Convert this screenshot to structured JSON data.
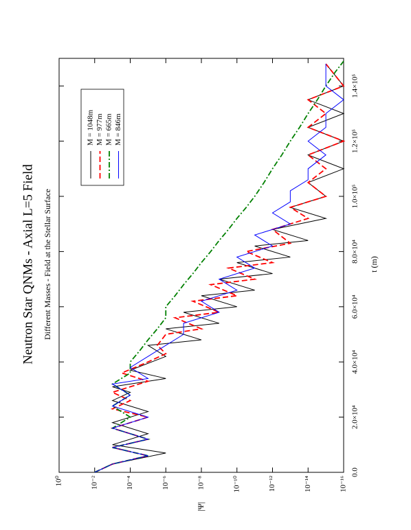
{
  "chart_data": {
    "type": "line",
    "title": "Neutron Star QNMs - Axial L=5 Field",
    "subtitle": "Different Masses - Field at the Stellar Surface",
    "xlabel": "t (m)",
    "ylabel": "|Ψ|",
    "log_y": true,
    "grid": false,
    "legend": "upper right",
    "xlim": [
      0,
      150000
    ],
    "ylim": [
      1e-16,
      1
    ],
    "xticks": [
      {
        "value": 0,
        "label": "0.0"
      },
      {
        "value": 20000,
        "label": "2.0×10⁴"
      },
      {
        "value": 40000,
        "label": "4.0×10⁴"
      },
      {
        "value": 60000,
        "label": "6.0×10⁴"
      },
      {
        "value": 80000,
        "label": "8.0×10⁴"
      },
      {
        "value": 100000,
        "label": "1.0×10⁵"
      },
      {
        "value": 120000,
        "label": "1.2×10⁵"
      },
      {
        "value": 140000,
        "label": "1.4×10⁵"
      }
    ],
    "yticks": [
      {
        "value": 1,
        "label": "10⁰"
      },
      {
        "value": 0.01,
        "label": "10⁻²"
      },
      {
        "value": 0.0001,
        "label": "10⁻⁴"
      },
      {
        "value": 1e-06,
        "label": "10⁻⁶"
      },
      {
        "value": 1e-08,
        "label": "10⁻⁸"
      },
      {
        "value": 1e-10,
        "label": "10⁻¹⁰"
      },
      {
        "value": 1e-12,
        "label": "10⁻¹²"
      },
      {
        "value": 1e-14,
        "label": "10⁻¹⁴"
      },
      {
        "value": 1e-16,
        "label": "10⁻¹⁶"
      }
    ],
    "series": [
      {
        "name": "M = 1048m",
        "color": "#000000",
        "dash": "none",
        "x": [
          0,
          3000,
          7000,
          10000,
          14000,
          18000,
          22000,
          26000,
          29000,
          31000,
          34000,
          37000,
          42000,
          46000,
          48000,
          52000,
          54000,
          58000,
          60000,
          64000,
          66000,
          70000,
          72000,
          76000,
          78000,
          82000,
          84000,
          88000,
          92000,
          96000,
          100000,
          105000,
          110000,
          115000,
          120000,
          125000,
          130000,
          135000,
          140000,
          148000
        ],
        "values": [
          0.01,
          0.001,
          1e-06,
          0.001,
          1e-05,
          0.001,
          1e-05,
          0.001,
          0.0001,
          0.001,
          1e-06,
          0.0001,
          1e-06,
          1e-05,
          1e-08,
          1e-06,
          1e-09,
          1e-07,
          1e-10,
          1e-08,
          1e-11,
          1e-09,
          1e-12,
          1e-10,
          1e-13,
          1e-11,
          1e-14,
          1e-12,
          1e-15,
          1e-13,
          1e-15,
          1e-14,
          1e-16,
          1e-14,
          1e-16,
          1e-14,
          1e-16,
          1e-14,
          1e-16,
          1e-15
        ]
      },
      {
        "name": "M = 977m",
        "color": "#ff0000",
        "dash": "8 4",
        "x": [
          0,
          3000,
          6000,
          9000,
          12000,
          16000,
          20000,
          23000,
          26000,
          29000,
          33000,
          36000,
          40000,
          43000,
          46000,
          50000,
          52000,
          56000,
          58000,
          62000,
          64000,
          68000,
          70000,
          74000,
          76000,
          80000,
          83000,
          88000,
          92000,
          96000,
          100000,
          105000,
          110000,
          115000,
          120000,
          125000,
          130000,
          135000,
          140000,
          148000
        ],
        "values": [
          0.01,
          0.001,
          1e-05,
          0.001,
          1e-05,
          0.001,
          1e-05,
          0.001,
          0.0001,
          0.001,
          1e-05,
          0.0003,
          1e-05,
          1e-06,
          3e-06,
          1e-06,
          1e-08,
          3e-07,
          1e-09,
          3e-08,
          1e-10,
          3e-09,
          1e-11,
          3e-10,
          1e-12,
          3e-11,
          1e-13,
          1e-12,
          1e-14,
          1e-13,
          1e-15,
          1e-14,
          1e-15,
          1e-14,
          1e-16,
          1e-14,
          1e-15,
          1e-14,
          1e-16,
          1e-15
        ]
      },
      {
        "name": "M = 665m",
        "color": "#008000",
        "dash": "8 3 2 3",
        "x": [
          0,
          3000,
          6000,
          9000,
          12000,
          16000,
          20000,
          24000,
          28000,
          32000,
          36000,
          40000,
          44000,
          48000,
          52000,
          56000,
          60000,
          64000,
          68000,
          72000,
          76000,
          80000,
          84000,
          88000,
          92000,
          96000,
          100000,
          105000,
          110000,
          115000,
          120000,
          125000,
          130000,
          135000,
          140000,
          145000,
          149000
        ],
        "values": [
          0.01,
          0.001,
          1e-05,
          0.001,
          1e-05,
          0.001,
          0.0001,
          0.001,
          0.0001,
          0.001,
          0.0001,
          0.0001,
          3e-05,
          1e-05,
          3e-06,
          1e-06,
          1e-06,
          3e-07,
          1e-07,
          3e-08,
          1e-08,
          3e-09,
          1e-09,
          3e-10,
          1e-10,
          3e-11,
          1e-11,
          3e-12,
          1e-12,
          3e-13,
          1e-13,
          3e-14,
          1e-14,
          3e-15,
          1e-15,
          3e-16,
          1e-16
        ]
      },
      {
        "name": "M = 846m",
        "color": "#0000ff",
        "dash": "none",
        "x": [
          0,
          3000,
          6000,
          9000,
          12000,
          16000,
          20000,
          24000,
          28000,
          32000,
          34000,
          38000,
          42000,
          46000,
          50000,
          54000,
          58000,
          62000,
          66000,
          70000,
          74000,
          78000,
          82000,
          86000,
          90000,
          94000,
          98000,
          102000,
          106000,
          110000,
          115000,
          120000,
          125000,
          130000,
          135000,
          140000,
          148000
        ],
        "values": [
          0.01,
          0.001,
          1e-05,
          0.001,
          1e-05,
          0.001,
          1e-05,
          0.001,
          0.0001,
          0.001,
          1e-05,
          0.0001,
          1e-05,
          1e-06,
          1e-07,
          1e-07,
          1e-09,
          1e-08,
          1e-10,
          1e-09,
          1e-11,
          1e-10,
          1e-12,
          1e-11,
          1e-13,
          1e-12,
          1e-13,
          1e-13,
          1e-14,
          1e-14,
          1e-15,
          1e-14,
          1e-15,
          1e-15,
          1e-16,
          1e-15,
          1e-15
        ]
      }
    ]
  }
}
